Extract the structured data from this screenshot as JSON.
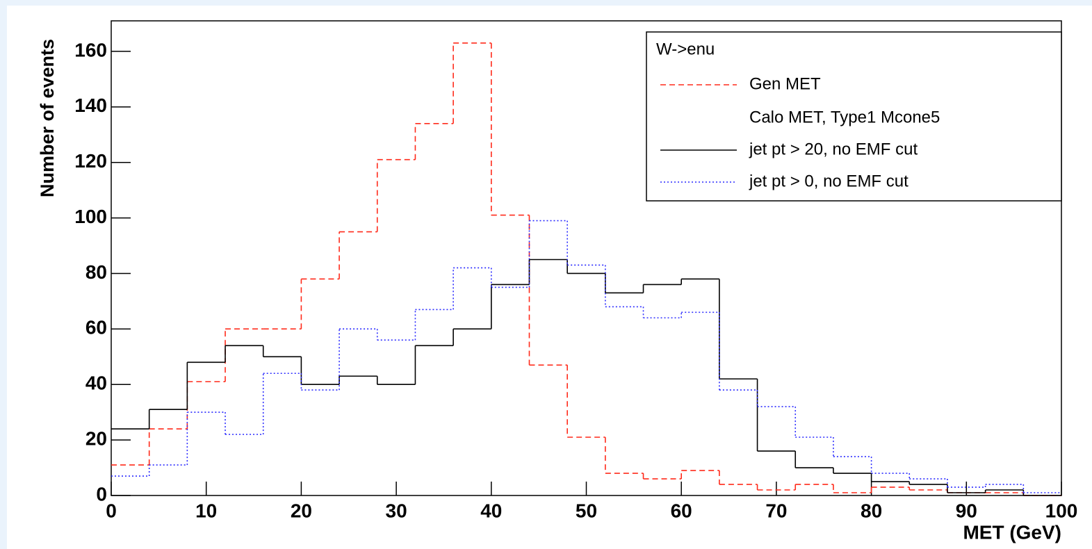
{
  "chart_data": {
    "type": "histogram",
    "x_label": "MET (GeV)",
    "y_label": "Number of events",
    "legend_title": "W->enu",
    "legend_note": "Calo MET, Type1 Mcone5",
    "legend_position": "upper right",
    "bins": [
      0,
      4,
      8,
      12,
      16,
      20,
      24,
      28,
      32,
      36,
      40,
      44,
      48,
      52,
      56,
      60,
      64,
      68,
      72,
      76,
      80,
      84,
      88,
      92,
      96,
      100
    ],
    "series": [
      {
        "name": "Gen MET",
        "color": "#ff2a1a",
        "dash": "dashed",
        "values": [
          11,
          24,
          41,
          60,
          60,
          78,
          95,
          121,
          134,
          163,
          101,
          47,
          21,
          8,
          6,
          9,
          4,
          2,
          4,
          1,
          3,
          2,
          1,
          1,
          0
        ]
      },
      {
        "name": "jet pt > 20, no EMF cut",
        "color": "#000000",
        "dash": "solid",
        "values": [
          24,
          31,
          48,
          54,
          50,
          40,
          43,
          40,
          54,
          60,
          76,
          85,
          80,
          73,
          76,
          78,
          42,
          16,
          10,
          8,
          5,
          4,
          1,
          2,
          0
        ]
      },
      {
        "name": "jet pt > 0,  no EMF cut",
        "color": "#2a2aff",
        "dash": "dotted",
        "values": [
          7,
          11,
          30,
          22,
          44,
          38,
          60,
          56,
          67,
          82,
          75,
          99,
          83,
          68,
          64,
          66,
          38,
          32,
          21,
          14,
          8,
          6,
          3,
          4,
          1
        ]
      }
    ],
    "xlim": [
      0,
      100
    ],
    "ylim": [
      0,
      171
    ],
    "xticks": [
      0,
      10,
      20,
      30,
      40,
      50,
      60,
      70,
      80,
      90,
      100
    ],
    "yticks": [
      0,
      20,
      40,
      60,
      80,
      100,
      120,
      140,
      160
    ]
  }
}
